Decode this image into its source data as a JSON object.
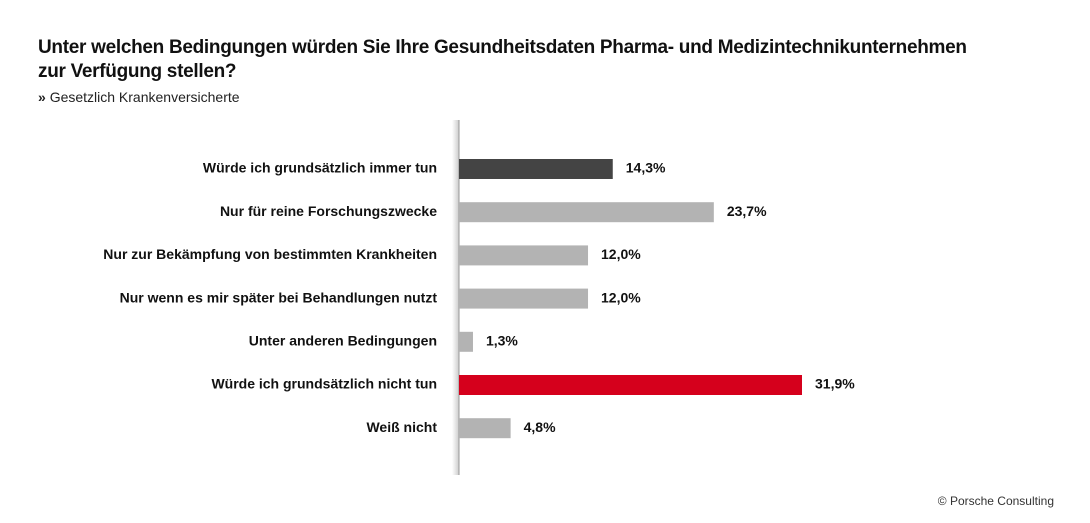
{
  "chart_data": {
    "type": "bar",
    "orientation": "horizontal",
    "title": "Unter welchen Bedingungen würden Sie Ihre Gesundheitsdaten Pharma- und Medizintechnikunternehmen zur Verfügung stellen?",
    "subtitle": "Gesetzlich Krankenversicherte",
    "categories": [
      "Würde ich grundsätzlich immer tun",
      "Nur für reine Forschungszwecke",
      "Nur zur Bekämpfung von bestimmten Krankheiten",
      "Nur wenn es mir später bei Behandlungen nutzt",
      "Unter anderen Bedingungen",
      "Würde ich grundsätzlich nicht tun",
      "Weiß nicht"
    ],
    "values": [
      14.3,
      23.7,
      12.0,
      12.0,
      1.3,
      31.9,
      4.8
    ],
    "value_labels": [
      "14,3%",
      "23,7%",
      "12,0%",
      "12,0%",
      "1,3%",
      "31,9%",
      "4,8%"
    ],
    "colors": [
      "#444444",
      "#b3b3b3",
      "#b3b3b3",
      "#b3b3b3",
      "#b3b3b3",
      "#d5001c",
      "#b3b3b3"
    ],
    "source": "© Porsche Consulting"
  }
}
